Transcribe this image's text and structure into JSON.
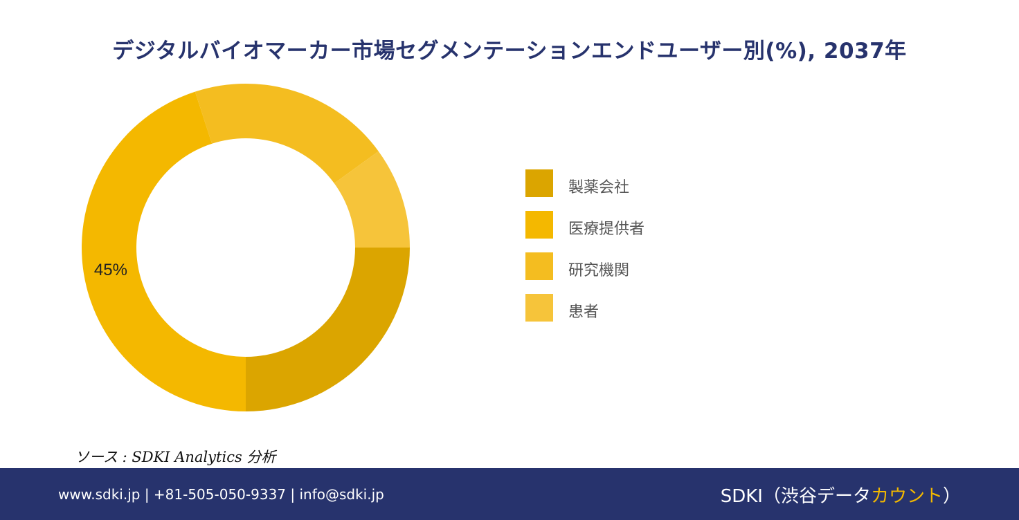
{
  "title": "デジタルバイオマーカー市場セグメンテーションエンドユーザー別(%), 2037年",
  "chart_data": {
    "type": "pie",
    "donut": true,
    "categories": [
      "製薬会社",
      "医療提供者",
      "研究機関",
      "患者"
    ],
    "values": [
      25,
      45,
      20,
      10
    ],
    "colors": [
      "#dba500",
      "#f4b800",
      "#f4bd20",
      "#f6c43a"
    ],
    "data_labels": [
      {
        "category": "医療提供者",
        "text": "45%"
      }
    ],
    "legend_position": "right"
  },
  "source": "ソース : SDKI Analytics 分析",
  "footer": {
    "contact": "www.sdki.jp | +81-505-050-9337 | info@sdki.jp",
    "brand_prefix": "SDKI（渋谷データ",
    "brand_accent": "カウント",
    "brand_suffix": "）"
  }
}
